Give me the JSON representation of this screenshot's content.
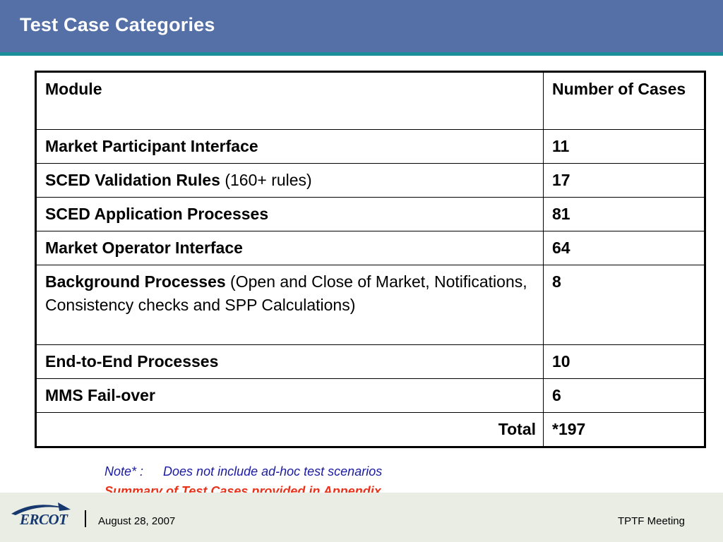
{
  "slide": {
    "title": "Test Case Categories"
  },
  "table": {
    "headers": {
      "module": "Module",
      "count": "Number of Cases"
    },
    "rows": [
      {
        "module": "Market Participant Interface",
        "detail": "",
        "count": "11"
      },
      {
        "module": "SCED Validation Rules",
        "detail": " (160+ rules)",
        "count": "17"
      },
      {
        "module": "SCED Application Processes",
        "detail": "",
        "count": "81"
      },
      {
        "module": "Market Operator Interface",
        "detail": "",
        "count": "64"
      },
      {
        "module": "Background Processes",
        "detail": " (Open and Close of Market, Notifications, Consistency checks and SPP Calculations)",
        "count": "8"
      },
      {
        "module": "End-to-End Processes",
        "detail": "",
        "count": "10"
      },
      {
        "module": "MMS Fail-over",
        "detail": "",
        "count": "6"
      }
    ],
    "total": {
      "label": "Total",
      "count": "*197"
    }
  },
  "notes": {
    "note_label": "Note* :",
    "note_text": "Does not include ad-hoc test scenarios",
    "summary": "Summary of Test Cases provided in Appendix"
  },
  "footer": {
    "logo_text": "ERCOT",
    "date": "August 28, 2007",
    "meeting": "TPTF Meeting"
  },
  "colors": {
    "title_bar": "#5470a6",
    "title_rule": "#1b8f99",
    "note": "#1a1aa0",
    "summary": "#e8331c",
    "footer_bg": "#e9ede4",
    "logo": "#16386e"
  }
}
